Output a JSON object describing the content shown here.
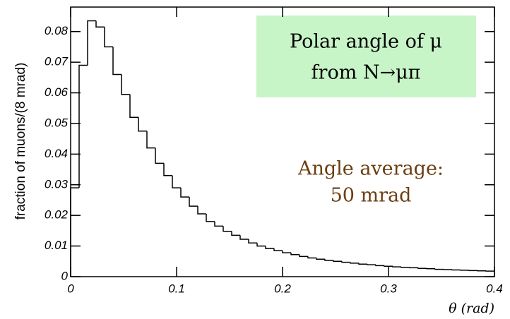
{
  "chart_data": {
    "type": "histogram",
    "x_label": "θ (rad)",
    "y_label": "fraction of muons/(8 mrad)",
    "annotations": [
      "Polar angle of μ",
      "from N→μπ",
      "Angle average:",
      "50 mrad"
    ],
    "bins": [
      0,
      0.008,
      0.016,
      0.024,
      0.032,
      0.04,
      0.048,
      0.056,
      0.064,
      0.072,
      0.08,
      0.088,
      0.096,
      0.104,
      0.112,
      0.12,
      0.128,
      0.136,
      0.144,
      0.152,
      0.16,
      0.168,
      0.176,
      0.184,
      0.192,
      0.2,
      0.208,
      0.216,
      0.224,
      0.232,
      0.24,
      0.248,
      0.256,
      0.264,
      0.272,
      0.28,
      0.288,
      0.296,
      0.304,
      0.312,
      0.32,
      0.328,
      0.336,
      0.344,
      0.352,
      0.36,
      0.368,
      0.376,
      0.384,
      0.392,
      0.4
    ],
    "values": [
      0.029,
      0.069,
      0.0835,
      0.0815,
      0.075,
      0.066,
      0.0595,
      0.052,
      0.0475,
      0.042,
      0.037,
      0.033,
      0.029,
      0.026,
      0.023,
      0.0205,
      0.018,
      0.0165,
      0.0148,
      0.0135,
      0.0122,
      0.011,
      0.01,
      0.0092,
      0.0085,
      0.0078,
      0.0072,
      0.0066,
      0.0061,
      0.0057,
      0.0053,
      0.005,
      0.0047,
      0.0044,
      0.0041,
      0.0039,
      0.0036,
      0.0034,
      0.0032,
      0.003,
      0.0029,
      0.0027,
      0.0026,
      0.0024,
      0.0023,
      0.0022,
      0.0021,
      0.002,
      0.0019,
      0.0018
    ],
    "color": "#000000",
    "xlim": [
      0,
      0.4
    ],
    "ylim": [
      0,
      0.088
    ],
    "xticks": [
      0,
      0.1,
      0.2,
      0.3,
      0.4
    ],
    "yticks": [
      0,
      0.01,
      0.02,
      0.03,
      0.04,
      0.05,
      0.06,
      0.07,
      0.08
    ]
  }
}
